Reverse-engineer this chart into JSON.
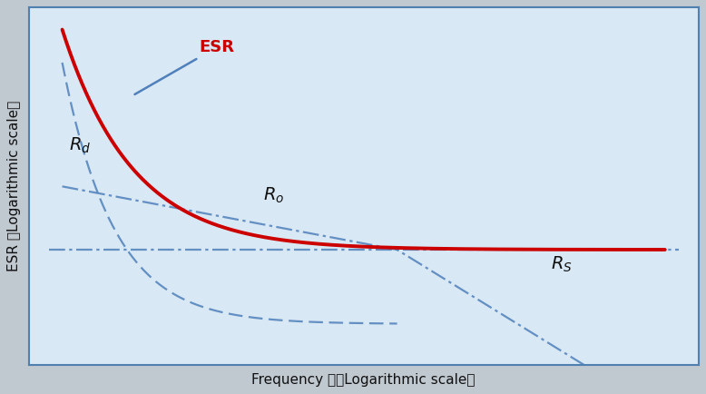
{
  "background_outer": "#c0c8d0",
  "background_inner": "#d8e8f4",
  "border_color": "#5080b0",
  "xlabel": "Frequency 　（Logarithmic scale）",
  "ylabel": "ESR （Logarithmic scale）",
  "esr_color": "#cc0000",
  "component_color": "#5080bb",
  "esr_label_color": "#cc0000",
  "label_color": "#111111",
  "annotation_ESR": "ESR",
  "annotation_Rd": "$R_d$",
  "annotation_Ro": "$R_o$",
  "annotation_Rs": "$R_S$"
}
